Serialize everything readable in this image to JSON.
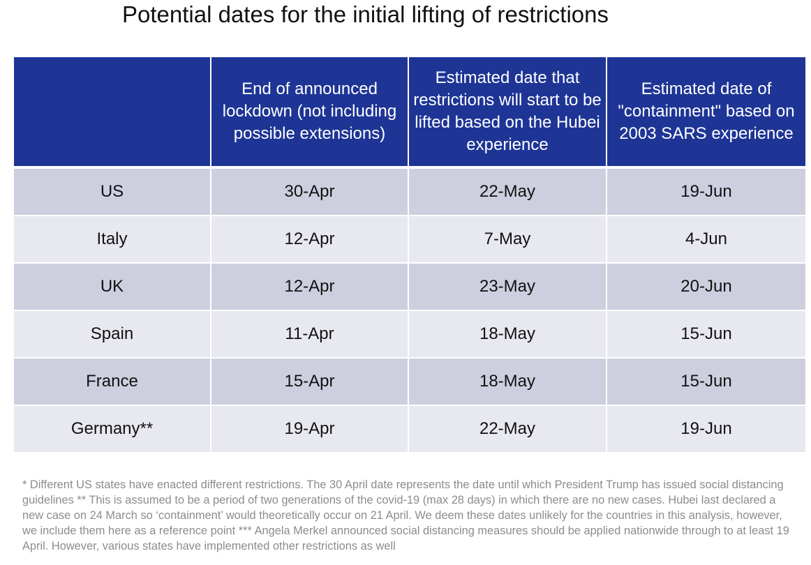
{
  "title": "Potential dates for the initial lifting of restrictions",
  "table": {
    "headers": [
      "",
      "End of announced lockdown (not including possible extensions)",
      "Estimated date that restrictions will start to be lifted based on the Hubei experience",
      "Estimated date of \"containment\" based on 2003 SARS experience"
    ],
    "rows": [
      [
        "US",
        "30-Apr",
        "22-May",
        "19-Jun"
      ],
      [
        "Italy",
        "12-Apr",
        "7-May",
        "4-Jun"
      ],
      [
        "UK",
        "12-Apr",
        "23-May",
        "20-Jun"
      ],
      [
        "Spain",
        "11-Apr",
        "18-May",
        "15-Jun"
      ],
      [
        "France",
        "15-Apr",
        "18-May",
        "15-Jun"
      ],
      [
        "Germany**",
        "19-Apr",
        "22-May",
        "19-Jun"
      ]
    ]
  },
  "footnote": "* Different US states have enacted different restrictions. The 30 April date represents the date until which President Trump has issued social distancing guidelines ** This is assumed to be a period of two generations of the covid-19 (max 28 days) in which there are no new cases. Hubei last declared a new case on 24 March so ‘containment’ would theoretically occur on 21 April. We deem these dates unlikely for the countries in this analysis, however, we include them here as a reference point *** Angela Merkel announced social distancing measures should be applied nationwide through to at least 19 April. However, various states have implemented other restrictions as well",
  "colors": {
    "header_bg": "#1e3596",
    "row_dark": "#cdcfdf",
    "row_light": "#e8e9f0",
    "footnote_text": "#8c8c8c"
  }
}
